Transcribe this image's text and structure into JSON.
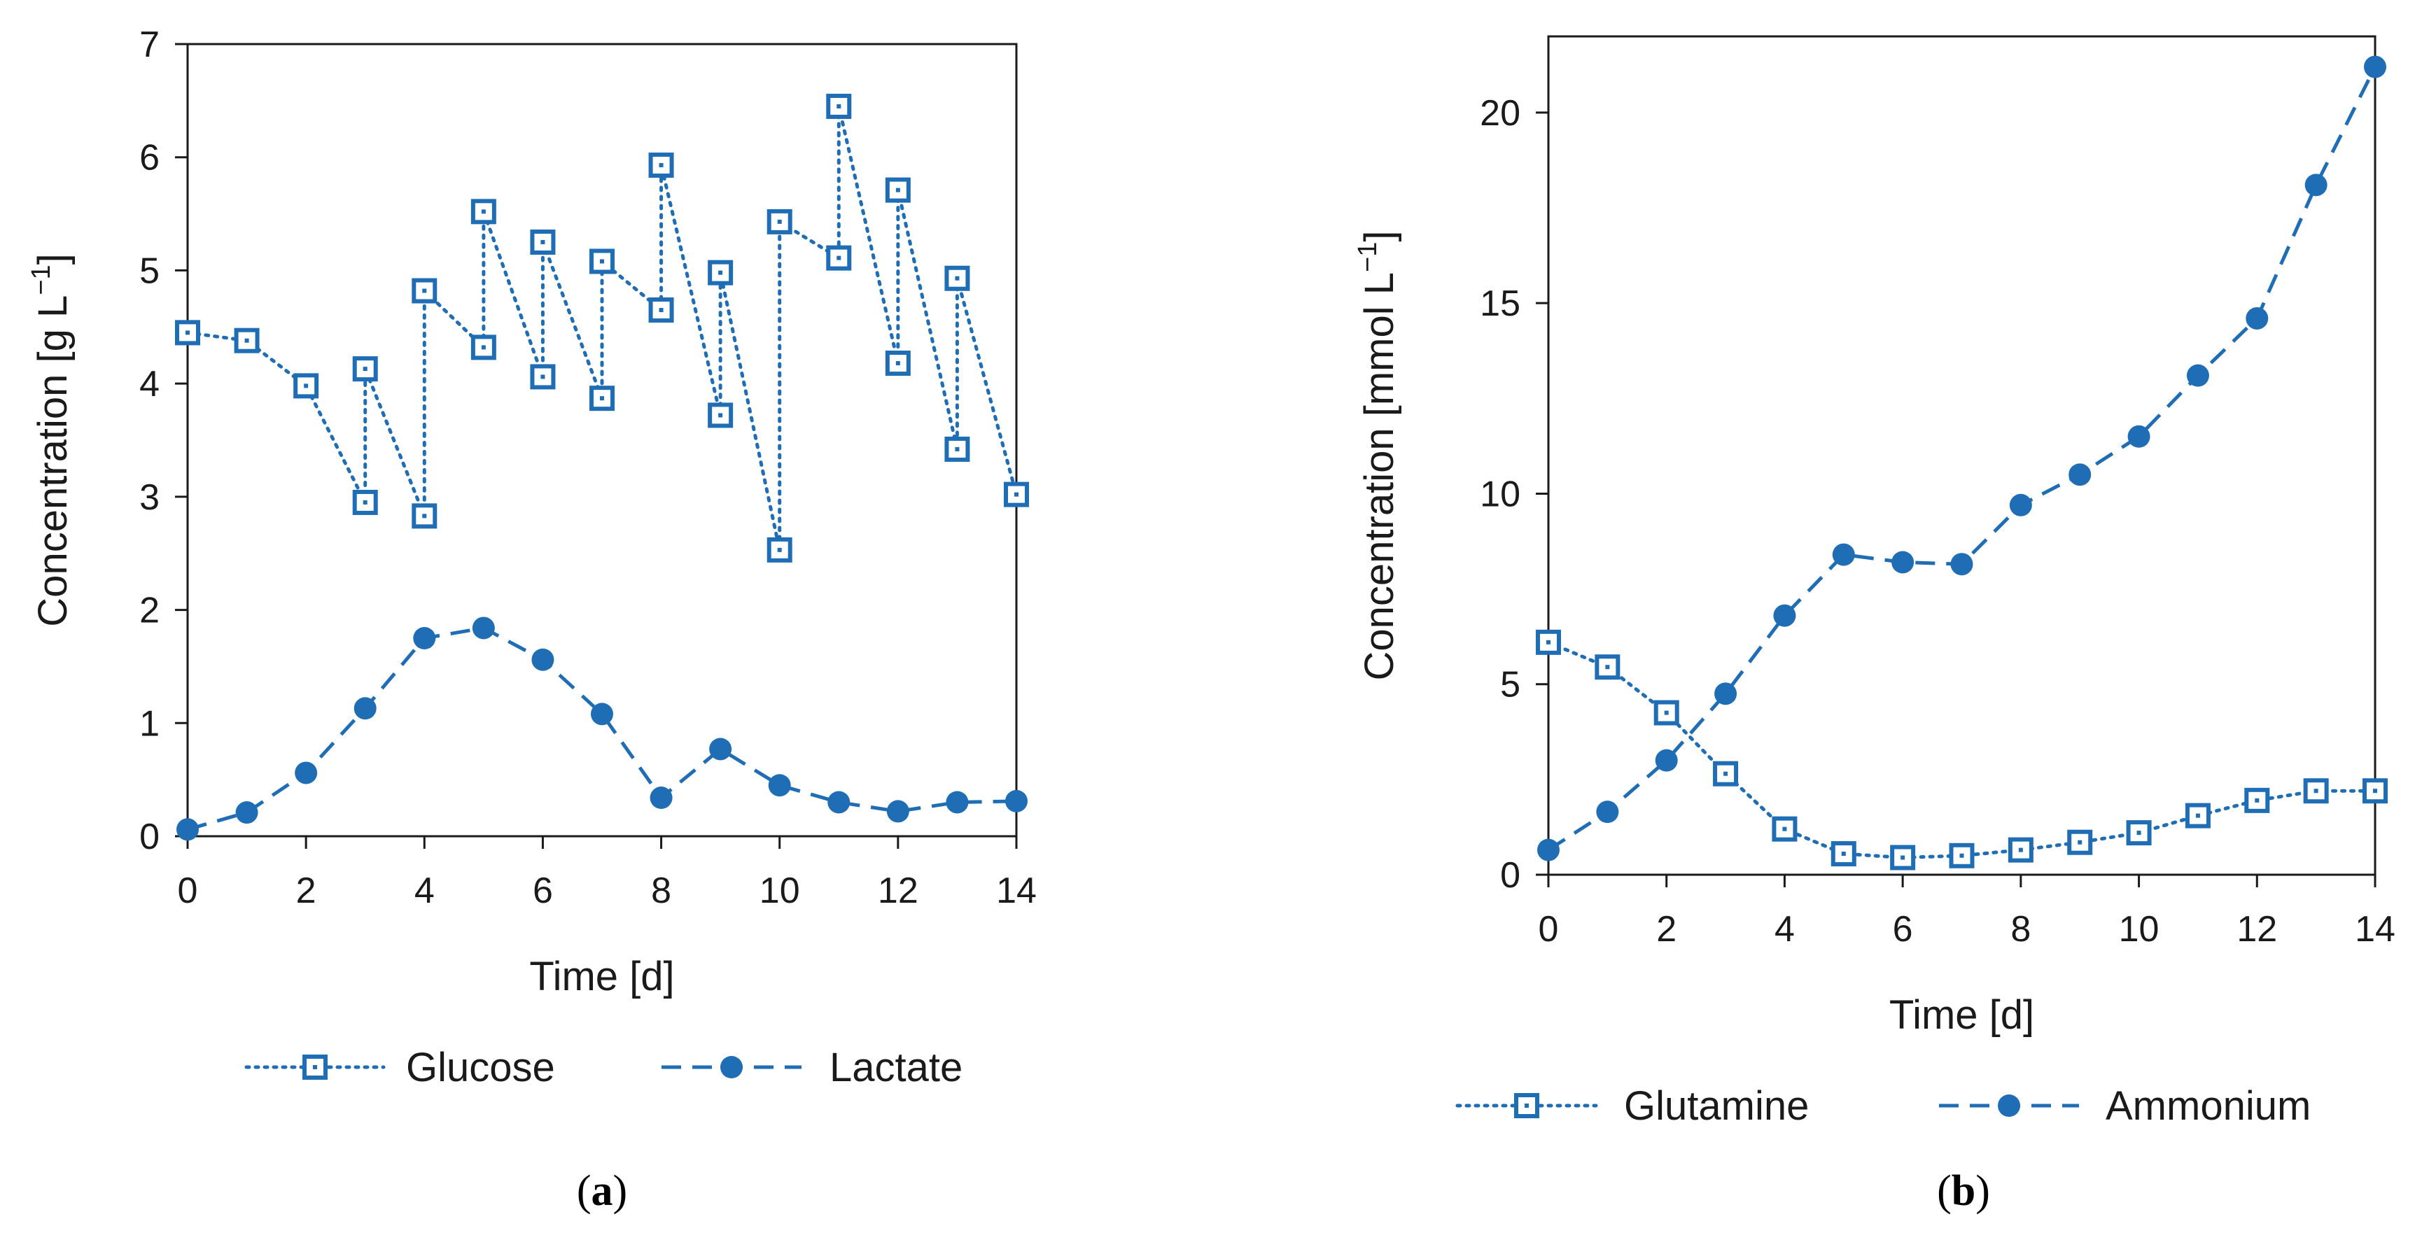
{
  "colors": {
    "series": "#1F6DB5",
    "axis": "#1a1a1a",
    "background": "#ffffff"
  },
  "chart_data": [
    {
      "type": "line",
      "panel": "a",
      "panel_label": {
        "open": "(",
        "letter": "a",
        "close": ")"
      },
      "title": "",
      "xlabel": "Time [d]",
      "ylabel": "Concentration [g L−1]",
      "ylabel_parts": {
        "main": "Concentration [g L",
        "sup": "−1",
        "end": "]"
      },
      "xlim": [
        0,
        14
      ],
      "ylim": [
        0,
        7
      ],
      "xticks": [
        0,
        2,
        4,
        6,
        8,
        10,
        12,
        14
      ],
      "yticks": [
        0,
        1,
        2,
        3,
        4,
        5,
        6,
        7
      ],
      "grid": false,
      "legend_position": "bottom",
      "series": [
        {
          "name": "Glucose",
          "marker": "square-dot",
          "line": "dotted",
          "x": [
            0,
            1,
            2,
            3,
            3,
            4,
            4,
            5,
            5,
            6,
            6,
            7,
            7,
            8,
            8,
            9,
            9,
            10,
            10,
            11,
            11,
            12,
            12,
            13,
            13,
            14
          ],
          "values": [
            4.45,
            4.38,
            3.98,
            2.95,
            4.13,
            2.83,
            4.82,
            4.32,
            5.52,
            4.06,
            5.25,
            3.87,
            5.08,
            4.65,
            5.93,
            3.72,
            4.98,
            2.53,
            5.43,
            5.11,
            6.45,
            4.18,
            5.71,
            3.42,
            4.93,
            3.02
          ]
        },
        {
          "name": "Lactate",
          "marker": "circle",
          "line": "dashed",
          "x": [
            0,
            1,
            2,
            3,
            4,
            5,
            6,
            7,
            8,
            9,
            10,
            11,
            12,
            13,
            14
          ],
          "values": [
            0.06,
            0.21,
            0.56,
            1.13,
            1.75,
            1.84,
            1.56,
            1.08,
            0.34,
            0.77,
            0.45,
            0.3,
            0.22,
            0.3,
            0.31
          ]
        }
      ]
    },
    {
      "type": "line",
      "panel": "b",
      "panel_label": {
        "open": "(",
        "letter": "b",
        "close": ")"
      },
      "title": "",
      "xlabel": "Time [d]",
      "ylabel": "Concentration [mmol L−1]",
      "ylabel_parts": {
        "main": "Concentration [mmol L",
        "sup": "−1",
        "end": "]"
      },
      "xlim": [
        0,
        14
      ],
      "ylim": [
        0,
        22
      ],
      "xticks": [
        0,
        2,
        4,
        6,
        8,
        10,
        12,
        14
      ],
      "yticks": [
        0,
        5,
        10,
        15,
        20
      ],
      "grid": false,
      "legend_position": "bottom",
      "series": [
        {
          "name": "Glutamine",
          "marker": "square-dot",
          "line": "dotted",
          "x": [
            0,
            1,
            2,
            3,
            4,
            5,
            6,
            7,
            8,
            9,
            10,
            11,
            12,
            13,
            14
          ],
          "values": [
            6.1,
            5.45,
            4.25,
            2.65,
            1.2,
            0.55,
            0.45,
            0.5,
            0.65,
            0.85,
            1.1,
            1.55,
            1.95,
            2.2,
            2.2
          ]
        },
        {
          "name": "Ammonium",
          "marker": "circle",
          "line": "dashed",
          "x": [
            0,
            1,
            2,
            3,
            4,
            5,
            6,
            7,
            8,
            9,
            10,
            11,
            12,
            13,
            14
          ],
          "values": [
            0.65,
            1.65,
            3.0,
            4.75,
            6.8,
            8.4,
            8.2,
            8.15,
            9.7,
            10.5,
            11.5,
            13.1,
            14.6,
            18.1,
            21.2
          ]
        }
      ]
    }
  ]
}
